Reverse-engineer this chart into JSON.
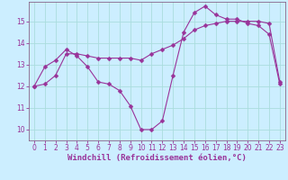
{
  "xlabel": "Windchill (Refroidissement éolien,°C)",
  "background_color": "#cceeff",
  "grid_color": "#aadddd",
  "line_color": "#993399",
  "spine_color": "#886688",
  "xlim": [
    -0.5,
    23.5
  ],
  "ylim": [
    9.5,
    15.9
  ],
  "yticks": [
    10,
    11,
    12,
    13,
    14,
    15
  ],
  "xticks": [
    0,
    1,
    2,
    3,
    4,
    5,
    6,
    7,
    8,
    9,
    10,
    11,
    12,
    13,
    14,
    15,
    16,
    17,
    18,
    19,
    20,
    21,
    22,
    23
  ],
  "line1_x": [
    0,
    1,
    2,
    3,
    4,
    5,
    6,
    7,
    8,
    9,
    10,
    11,
    12,
    13,
    14,
    15,
    16,
    17,
    18,
    19,
    20,
    21,
    22,
    23
  ],
  "line1_y": [
    12.0,
    12.9,
    13.2,
    13.7,
    13.4,
    12.9,
    12.2,
    12.1,
    11.8,
    11.1,
    10.0,
    10.0,
    10.4,
    12.5,
    14.5,
    15.4,
    15.7,
    15.3,
    15.1,
    15.1,
    14.9,
    14.8,
    14.4,
    12.1
  ],
  "line2_x": [
    0,
    1,
    2,
    3,
    4,
    5,
    6,
    7,
    8,
    9,
    10,
    11,
    12,
    13,
    14,
    15,
    16,
    17,
    18,
    19,
    20,
    21,
    22,
    23
  ],
  "line2_y": [
    12.0,
    12.1,
    12.5,
    13.5,
    13.5,
    13.4,
    13.3,
    13.3,
    13.3,
    13.3,
    13.2,
    13.5,
    13.7,
    13.9,
    14.2,
    14.6,
    14.8,
    14.9,
    15.0,
    15.0,
    15.0,
    15.0,
    14.9,
    12.2
  ],
  "marker_size": 2.5,
  "line_width": 0.8,
  "tick_font_size": 5.5,
  "xlabel_font_size": 6.5
}
